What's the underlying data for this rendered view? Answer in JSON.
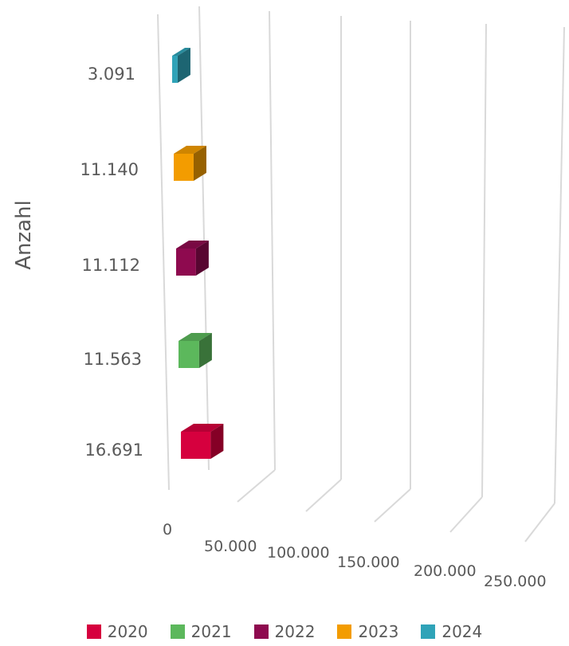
{
  "chart_data": {
    "type": "bar",
    "orientation": "horizontal-3d",
    "ylabel": "Anzahl",
    "categories": [
      "16.691",
      "11.563",
      "11.112",
      "11.140",
      "3.091"
    ],
    "series": [
      {
        "name": "2020",
        "value": 16691,
        "color": "#d6003e"
      },
      {
        "name": "2021",
        "value": 11563,
        "color": "#5cb85c"
      },
      {
        "name": "2022",
        "value": 11112,
        "color": "#8e0a4f"
      },
      {
        "name": "2023",
        "value": 11140,
        "color": "#f39c00"
      },
      {
        "name": "2024",
        "value": 3091,
        "color": "#2fa3b8"
      }
    ],
    "x_ticks": [
      "0",
      "50.000",
      "100.000",
      "150.000",
      "200.000",
      "250.000"
    ],
    "xlim": [
      0,
      250000
    ],
    "grid": true,
    "legend": "bottom"
  }
}
